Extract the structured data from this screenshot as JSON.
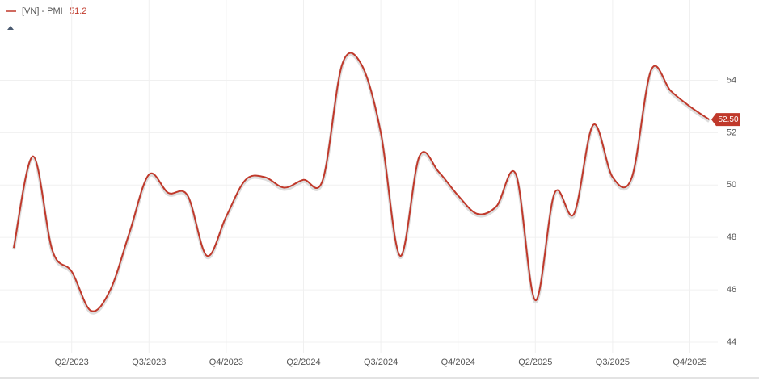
{
  "chart_data": {
    "type": "line",
    "series": [
      {
        "name": "[VN] - PMI",
        "color": "#c0392b",
        "values": [
          47.6,
          51.1,
          47.5,
          46.7,
          45.2,
          46.0,
          48.2,
          50.4,
          49.7,
          49.6,
          47.3,
          48.8,
          50.2,
          50.3,
          49.9,
          50.2,
          50.2,
          54.6,
          54.6,
          52.0,
          47.3,
          51.1,
          50.5,
          49.6,
          48.9,
          49.2,
          50.4,
          45.6,
          49.7,
          48.9,
          52.3,
          50.3,
          50.3,
          54.4,
          53.6,
          53.0,
          52.5
        ],
        "value_labels": [
          null,
          null,
          null,
          null,
          null,
          null,
          null,
          null,
          null,
          null,
          null,
          null,
          null,
          null,
          null,
          null,
          null,
          null,
          null,
          null,
          null,
          null,
          null,
          null,
          null,
          null,
          null,
          null,
          null,
          null,
          null,
          null,
          null,
          null,
          null,
          null,
          "52.50"
        ]
      }
    ],
    "legend_value": 51.2,
    "categories": [
      null,
      null,
      null,
      "Q2/2023",
      null,
      null,
      null,
      "Q3/2023",
      null,
      null,
      null,
      "Q4/2023",
      null,
      null,
      null,
      "Q2/2024",
      null,
      null,
      null,
      "Q3/2024",
      null,
      null,
      null,
      "Q4/2024",
      null,
      null,
      null,
      "Q2/2025",
      null,
      null,
      null,
      "Q3/2025",
      null,
      null,
      null,
      "Q4/2025",
      null
    ],
    "ylim": [
      43.6,
      55.4
    ],
    "yticks": [
      44,
      46,
      48,
      50,
      52,
      54
    ],
    "grid": true
  }
}
